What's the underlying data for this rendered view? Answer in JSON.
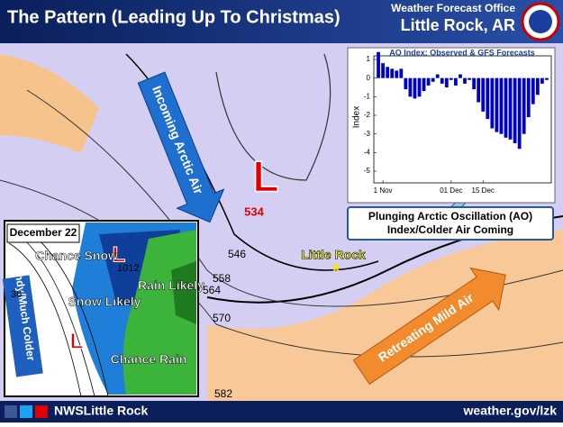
{
  "header": {
    "title": "The Pattern (Leading Up To Christmas)",
    "office": "Weather Forecast Office",
    "location": "Little Rock, AR"
  },
  "footer": {
    "social": "NWSLittle Rock",
    "url": "weather.gov/lzk"
  },
  "map": {
    "arctic_arrow": "Incoming Arctic Air",
    "low": "L",
    "low_height": "534",
    "contour_labels": [
      "546",
      "558",
      "564",
      "570",
      "582"
    ],
    "city": "Little Rock",
    "mild_arrow": "Retreating Mild Air",
    "callout": [
      "Plunging Arctic Oscillation (AO)",
      "Index/Colder Air Coming"
    ]
  },
  "inset": {
    "date": "December 22",
    "side_label": "Windy/Much Colder",
    "pressure": "1012",
    "temp": "36",
    "lows": [
      "L",
      "L"
    ],
    "zones": [
      "Chance Snow",
      "Snow Likely",
      "Rain Likely",
      "Chance Rain"
    ]
  },
  "chart_data": {
    "type": "bar",
    "title": "AO Index: Observed & GFS Forecasts",
    "y_label": "Index",
    "color": "#0000cc",
    "x": [
      -2,
      0,
      2,
      4,
      6,
      8,
      10,
      12,
      14,
      16,
      18,
      20,
      22,
      24,
      26,
      28,
      30,
      32,
      34,
      36,
      38,
      40,
      42,
      44,
      46,
      48,
      50,
      52,
      54,
      56,
      58,
      60,
      62,
      64,
      66,
      68,
      70,
      72
    ],
    "values": [
      1.4,
      0.8,
      0.6,
      0.5,
      0.4,
      0.5,
      -0.6,
      -1.0,
      -1.1,
      -1.0,
      -0.7,
      -0.4,
      -0.2,
      0.2,
      -0.3,
      -0.5,
      -0.1,
      -0.4,
      0.2,
      -0.3,
      -0.1,
      -0.6,
      -1.3,
      -1.8,
      -2.2,
      -2.7,
      -2.9,
      -3.0,
      -3.2,
      -3.3,
      -3.5,
      -3.8,
      -3.0,
      -2.1,
      -1.4,
      -0.9,
      -0.3,
      -0.1
    ],
    "xlim": [
      -4,
      74
    ],
    "xticks": [
      {
        "value": 0,
        "label": "1 Nov"
      },
      {
        "value": 30,
        "label": "01 Dec"
      },
      {
        "value": 44,
        "label": "15 Dec"
      }
    ],
    "ylim": [
      -5,
      1
    ],
    "yticks": [
      1,
      0,
      -1,
      -2,
      -3,
      -4,
      -5
    ]
  }
}
